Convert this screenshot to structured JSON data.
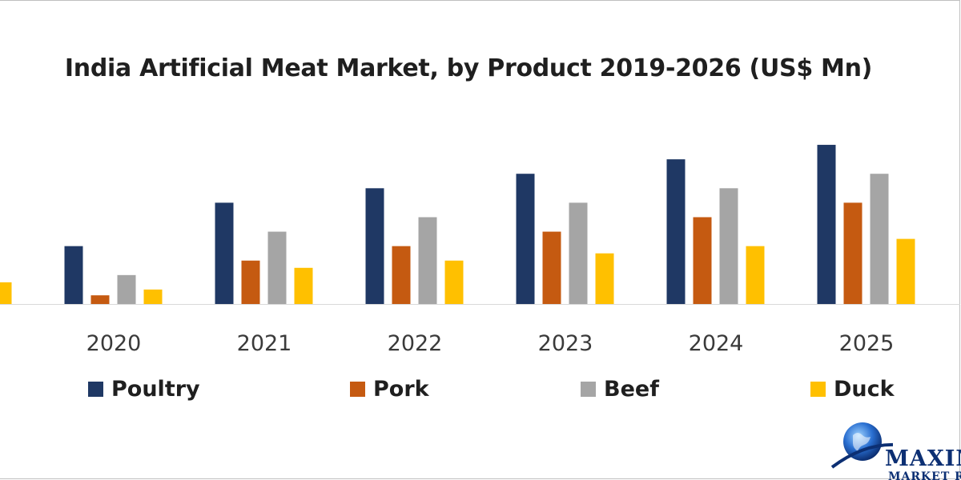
{
  "title": "India Artificial Meat Market, by Product 2019-2026 (US$ Mn)",
  "chart_data": {
    "type": "bar",
    "title": "India Artificial Meat Market, by Product 2019-2026 (US$ Mn)",
    "xlabel": "",
    "ylabel": "",
    "categories": [
      "2020",
      "2021",
      "2022",
      "2023",
      "2024",
      "2025"
    ],
    "series": [
      {
        "name": "Poultry",
        "color": "#1f3864",
        "values": [
          40,
          70,
          80,
          90,
          100,
          110
        ]
      },
      {
        "name": "Pork",
        "color": "#c55a11",
        "values": [
          6,
          30,
          40,
          50,
          60,
          70
        ]
      },
      {
        "name": "Beef",
        "color": "#a5a5a5",
        "values": [
          20,
          50,
          60,
          70,
          80,
          90
        ]
      },
      {
        "name": "Duck",
        "color": "#ffc000",
        "values": [
          10,
          25,
          30,
          35,
          40,
          45
        ]
      }
    ],
    "partial_category": {
      "series": "Duck",
      "value": 15
    },
    "ylim": [
      0,
      115
    ],
    "grid": false,
    "legend": "bottom"
  },
  "legend": {
    "poultry": "Poultry",
    "pork": "Pork",
    "beef": "Beef",
    "duck": "Duck"
  },
  "logo": {
    "text": "MAXIM",
    "sub": "MARKET R",
    "primary_color": "#0c2f73"
  }
}
